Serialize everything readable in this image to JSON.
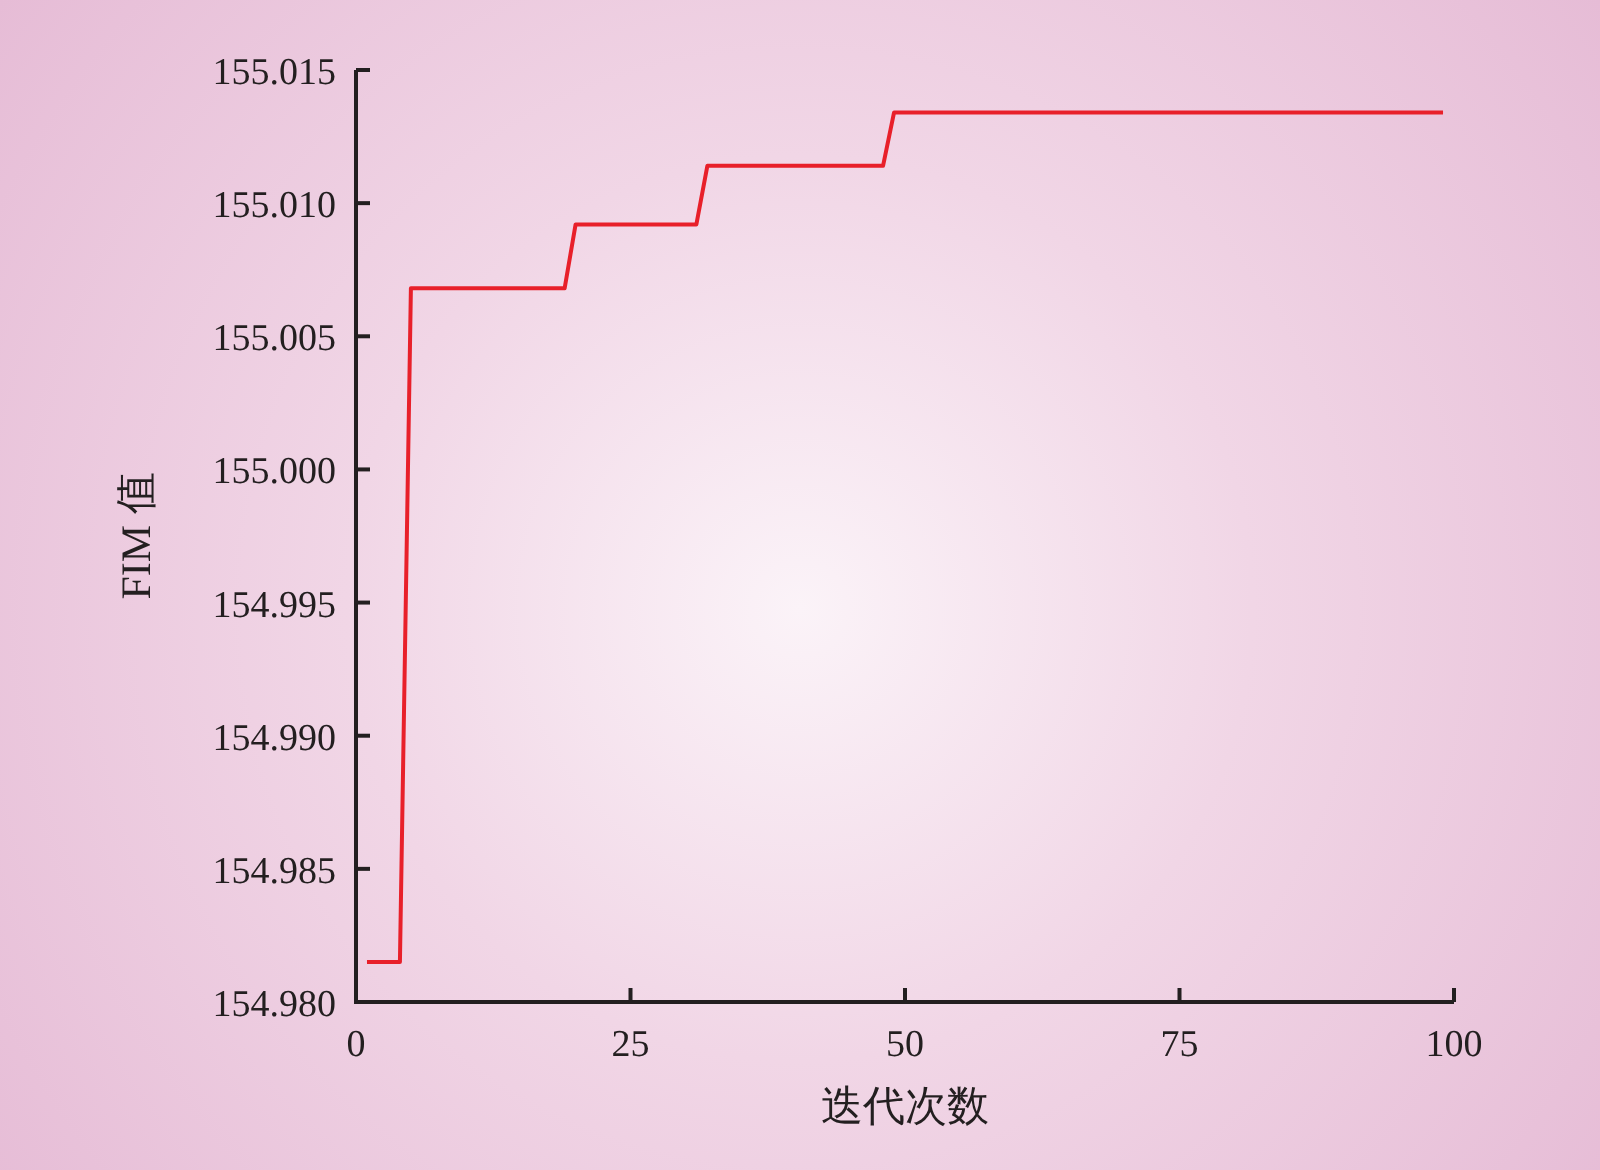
{
  "chart_data": {
    "type": "line",
    "xlabel": "迭代次数",
    "ylabel": "FIM 值",
    "x": [
      1,
      4,
      5,
      19,
      20,
      31,
      32,
      48,
      49,
      99
    ],
    "series": [
      {
        "color": "#e8202a",
        "values": [
          154.9815,
          154.9815,
          155.0068,
          155.0068,
          155.0092,
          155.0092,
          155.0114,
          155.0114,
          155.0134,
          155.0134
        ]
      }
    ],
    "xlim": [
      0,
      100
    ],
    "xticks": [
      0,
      25,
      50,
      75,
      100
    ],
    "ylim": [
      154.98,
      155.015
    ],
    "yticks": [
      {
        "value": 154.98,
        "label": "154.980"
      },
      {
        "value": 154.985,
        "label": "154.985"
      },
      {
        "value": 154.99,
        "label": "154.990"
      },
      {
        "value": 154.995,
        "label": "154.995"
      },
      {
        "value": 155.0,
        "label": "155.000"
      },
      {
        "value": 155.005,
        "label": "155.005"
      },
      {
        "value": 155.01,
        "label": "155.010"
      },
      {
        "value": 155.015,
        "label": "155.015"
      }
    ],
    "grid": false,
    "marker": "none",
    "line_style": "solid"
  }
}
